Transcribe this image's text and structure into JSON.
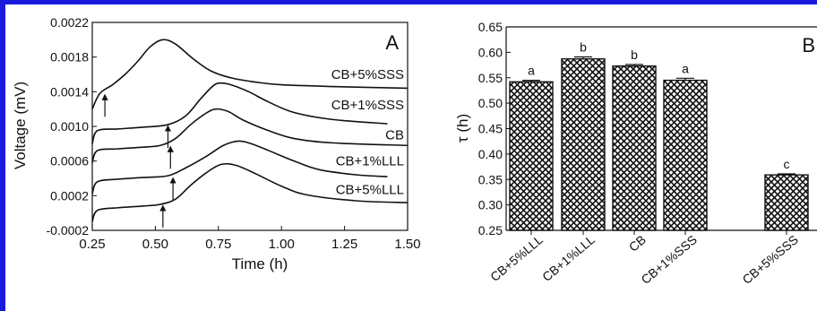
{
  "chart_data": [
    {
      "type": "line",
      "panel_label": "A",
      "xlabel": "Time (h)",
      "ylabel": "Voltage (mV)",
      "xlim": [
        0.25,
        1.5
      ],
      "ylim": [
        -0.0002,
        0.0022
      ],
      "xticks": [
        "0.25",
        "0.50",
        "0.75",
        "1.00",
        "1.25",
        "1.50"
      ],
      "yticks": [
        "-0.0002",
        "0.0002",
        "0.0006",
        "0.0010",
        "0.0014",
        "0.0018",
        "0.0022"
      ],
      "series": [
        {
          "name": "CB+5%SSS",
          "points": [
            [
              0.25,
              0.0012
            ],
            [
              0.28,
              0.00138
            ],
            [
              0.33,
              0.00148
            ],
            [
              0.38,
              0.0016
            ],
            [
              0.43,
              0.00175
            ],
            [
              0.48,
              0.00192
            ],
            [
              0.53,
              0.002
            ],
            [
              0.58,
              0.00195
            ],
            [
              0.65,
              0.00178
            ],
            [
              0.72,
              0.00164
            ],
            [
              0.8,
              0.00156
            ],
            [
              0.9,
              0.00151
            ],
            [
              1.0,
              0.00148
            ],
            [
              1.2,
              0.00146
            ],
            [
              1.5,
              0.00144
            ]
          ],
          "arrow": [
            0.3,
            0.00138
          ]
        },
        {
          "name": "CB+1%SSS",
          "points": [
            [
              0.25,
              0.0008
            ],
            [
              0.27,
              0.00095
            ],
            [
              0.35,
              0.00097
            ],
            [
              0.45,
              0.00099
            ],
            [
              0.55,
              0.00102
            ],
            [
              0.62,
              0.00112
            ],
            [
              0.68,
              0.00132
            ],
            [
              0.73,
              0.00147
            ],
            [
              0.76,
              0.0015
            ],
            [
              0.8,
              0.00148
            ],
            [
              0.87,
              0.0014
            ],
            [
              0.95,
              0.00128
            ],
            [
              1.05,
              0.00116
            ],
            [
              1.2,
              0.00108
            ],
            [
              1.42,
              0.00103
            ]
          ],
          "arrow": [
            0.55,
            0.00102
          ]
        },
        {
          "name": "CB",
          "points": [
            [
              0.25,
              0.00058
            ],
            [
              0.27,
              0.00072
            ],
            [
              0.35,
              0.00074
            ],
            [
              0.45,
              0.00076
            ],
            [
              0.52,
              0.00078
            ],
            [
              0.58,
              0.00086
            ],
            [
              0.64,
              0.00102
            ],
            [
              0.7,
              0.00115
            ],
            [
              0.74,
              0.0012
            ],
            [
              0.79,
              0.00117
            ],
            [
              0.85,
              0.00107
            ],
            [
              0.95,
              0.00095
            ],
            [
              1.05,
              0.00086
            ],
            [
              1.2,
              0.00081
            ],
            [
              1.5,
              0.00078
            ]
          ],
          "arrow": [
            0.56,
            0.00078
          ]
        },
        {
          "name": "CB+1%LLL",
          "points": [
            [
              0.25,
              0.00022
            ],
            [
              0.27,
              0.00036
            ],
            [
              0.35,
              0.00039
            ],
            [
              0.45,
              0.00041
            ],
            [
              0.55,
              0.00043
            ],
            [
              0.62,
              0.00052
            ],
            [
              0.7,
              0.00065
            ],
            [
              0.77,
              0.00078
            ],
            [
              0.83,
              0.00083
            ],
            [
              0.88,
              0.0008
            ],
            [
              0.95,
              0.00072
            ],
            [
              1.05,
              0.0006
            ],
            [
              1.15,
              0.0005
            ],
            [
              1.3,
              0.00044
            ],
            [
              1.42,
              0.00042
            ]
          ],
          "arrow": [
            0.57,
            0.00042
          ]
        },
        {
          "name": "CB+5%LLL",
          "points": [
            [
              0.25,
              -0.0001
            ],
            [
              0.27,
              3e-05
            ],
            [
              0.35,
              6e-05
            ],
            [
              0.45,
              8e-05
            ],
            [
              0.52,
              0.0001
            ],
            [
              0.58,
              0.00016
            ],
            [
              0.64,
              0.00032
            ],
            [
              0.7,
              0.00046
            ],
            [
              0.76,
              0.00056
            ],
            [
              0.82,
              0.00055
            ],
            [
              0.9,
              0.00045
            ],
            [
              1.0,
              0.00031
            ],
            [
              1.1,
              0.00021
            ],
            [
              1.3,
              0.00014
            ],
            [
              1.5,
              0.00012
            ]
          ],
          "arrow": [
            0.53,
            0.0001
          ]
        }
      ]
    },
    {
      "type": "bar",
      "panel_label": "B",
      "ylabel": "τ (h)",
      "ylim": [
        0.25,
        0.65
      ],
      "yticks": [
        "0.25",
        "0.30",
        "0.35",
        "0.40",
        "0.45",
        "0.50",
        "0.55",
        "0.60",
        "0.65"
      ],
      "categories": [
        "CB+5%LLL",
        "CB+1%LLL",
        "CB",
        "CB+1%SSS",
        "CB+5%SSS"
      ],
      "values": [
        0.542,
        0.587,
        0.573,
        0.545,
        0.359
      ],
      "errors": [
        0.003,
        0.004,
        0.003,
        0.004,
        0.002
      ],
      "significance_letters": [
        "a",
        "b",
        "b",
        "a",
        "c"
      ]
    }
  ],
  "colors": {
    "frame": "#1a1adf",
    "line": "#111111"
  }
}
